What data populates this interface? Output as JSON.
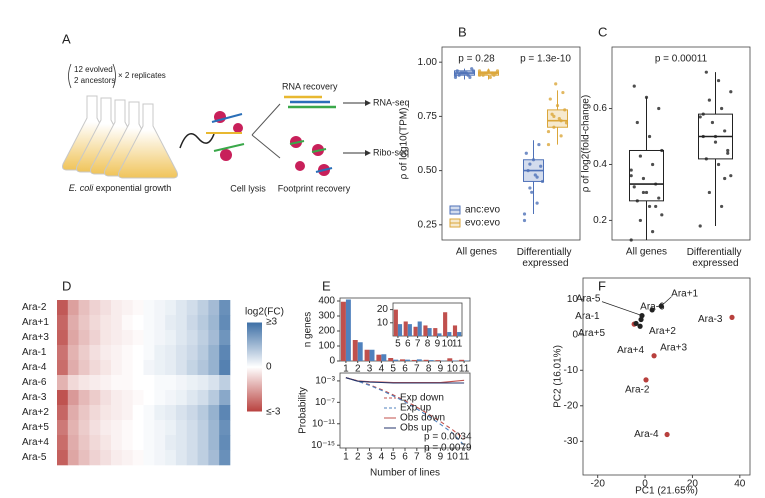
{
  "diagram": {
    "panel_labels": [
      "A",
      "B",
      "C",
      "D",
      "E",
      "F"
    ],
    "evolved": "12 evolved",
    "ancestors": "2 ancestors",
    "replicates": "× 2 replicates",
    "growth_species": "E. coli",
    "growth": " exponential growth",
    "lysis": "Cell lysis",
    "rna_recovery": "RNA recovery",
    "footprint": "Footprint recovery",
    "rna_seq": "RNA-seq",
    "ribo_seq": "Ribo-seq"
  },
  "chart_data": [
    {
      "type": "boxplot",
      "ylabel": "ρ of log10(TPM)",
      "categories": [
        "All genes",
        "Differentially expressed"
      ],
      "ylim": [
        0.18,
        1.07
      ],
      "yticks": [
        0.25,
        {
          "value": 0.5,
          "label": "0.50"
        },
        0.75,
        {
          "value": 1,
          "label": "1.00"
        }
      ],
      "annotations": [
        "p = 0.28",
        "p = 1.3e-10"
      ],
      "legend": "bottom-left",
      "series": [
        {
          "name": "anc:evo",
          "color": "#4f72b8",
          "box": [
            [
              0.92,
              0.94,
              0.95,
              0.96,
              0.97
            ],
            [
              0.3,
              0.45,
              0.5,
              0.55,
              0.64
            ]
          ],
          "points": [
            [
              0.93,
              0.94,
              0.95,
              0.96,
              0.95,
              0.94,
              0.97,
              0.95,
              0.96,
              0.93,
              0.95,
              0.94
            ],
            [
              0.3,
              0.35,
              0.42,
              0.45,
              0.48,
              0.5,
              0.52,
              0.55,
              0.58,
              0.62,
              0.4,
              0.27,
              0.47,
              0.53
            ]
          ]
        },
        {
          "name": "evo:evo",
          "color": "#dba63a",
          "box": [
            [
              0.92,
              0.94,
              0.95,
              0.955,
              0.97
            ],
            [
              0.62,
              0.7,
              0.73,
              0.78,
              0.87
            ]
          ],
          "points": [
            [
              0.94,
              0.95,
              0.95,
              0.96,
              0.93,
              0.94,
              0.95,
              0.96,
              0.95,
              0.94,
              0.95,
              0.96
            ],
            [
              0.62,
              0.66,
              0.7,
              0.72,
              0.74,
              0.76,
              0.78,
              0.8,
              0.83,
              0.86,
              0.9,
              0.68,
              0.73,
              0.75
            ]
          ]
        }
      ]
    },
    {
      "type": "boxplot",
      "ylabel": "ρ of log2(fold-change)",
      "categories": [
        "All genes",
        "Differentially expressed"
      ],
      "ylim": [
        0.13,
        0.82
      ],
      "yticks": [
        0.2,
        0.4,
        0.6
      ],
      "annotations": [
        "p = 0.00011"
      ],
      "series": [
        {
          "color": "#222222",
          "box": [
            [
              0.13,
              0.27,
              0.33,
              0.45,
              0.64
            ],
            [
              0.18,
              0.42,
              0.5,
              0.58,
              0.73
            ]
          ],
          "points": [
            [
              0.13,
              0.16,
              0.2,
              0.22,
              0.25,
              0.27,
              0.28,
              0.3,
              0.32,
              0.33,
              0.35,
              0.38,
              0.4,
              0.43,
              0.45,
              0.5,
              0.55,
              0.6,
              0.64,
              0.68,
              0.25,
              0.3,
              0.36
            ],
            [
              0.18,
              0.25,
              0.3,
              0.36,
              0.4,
              0.42,
              0.45,
              0.48,
              0.5,
              0.52,
              0.55,
              0.57,
              0.6,
              0.63,
              0.66,
              0.7,
              0.73,
              0.44,
              0.5,
              0.58,
              0.35
            ]
          ]
        }
      ]
    },
    {
      "type": "heatmap",
      "rows": [
        "Ara-2",
        "Ara+1",
        "Ara+3",
        "Ara-1",
        "Ara-4",
        "Ara-6",
        "Ara-3",
        "Ara+2",
        "Ara+5",
        "Ara+4",
        "Ara-5"
      ],
      "label_colors": [
        "#b8403d",
        "#222222",
        "#b8403d",
        "#b8403d",
        "#b8403d",
        "#222222",
        "#b8403d",
        "#222222",
        "#222222",
        "#222222",
        "#222222"
      ],
      "colors": [
        "#b8403d",
        "#ffffff",
        "#3b6ea5"
      ],
      "values": [
        [
          -2.6,
          -1.5,
          -1.0,
          -0.7,
          -0.5,
          -0.3,
          -0.2,
          -0.1,
          0.1,
          0.2,
          0.3,
          0.5,
          0.7,
          1.0,
          1.4,
          2.3
        ],
        [
          -2.4,
          -1.3,
          -0.9,
          -0.6,
          -0.4,
          -0.3,
          -0.1,
          0,
          0.1,
          0.2,
          0.4,
          0.5,
          0.8,
          1.1,
          1.5,
          2.4
        ],
        [
          -2.5,
          -1.4,
          -1.0,
          -0.7,
          -0.4,
          -0.3,
          -0.2,
          -0.1,
          0.1,
          0.2,
          0.3,
          0.5,
          0.7,
          1.0,
          1.4,
          2.2
        ],
        [
          -2.2,
          -1.2,
          -0.8,
          -0.5,
          -0.3,
          -0.2,
          -0.1,
          0,
          0.1,
          0.3,
          0.4,
          0.6,
          0.8,
          1.1,
          1.6,
          2.5
        ],
        [
          -2.3,
          -1.3,
          -0.9,
          -0.6,
          -0.4,
          -0.2,
          -0.1,
          0,
          0.2,
          0.3,
          0.4,
          0.6,
          0.9,
          1.2,
          1.6,
          2.6
        ],
        [
          -1.2,
          -0.6,
          -0.4,
          -0.3,
          -0.2,
          -0.1,
          -0.1,
          0,
          0,
          0.1,
          0.1,
          0.2,
          0.3,
          0.4,
          0.6,
          1.0
        ],
        [
          -2.7,
          -1.6,
          -1.1,
          -0.8,
          -0.5,
          -0.3,
          -0.2,
          -0.1,
          0,
          0.1,
          0.2,
          0.3,
          0.5,
          0.7,
          1.1,
          1.8
        ],
        [
          -2.4,
          -1.3,
          -0.9,
          -0.6,
          -0.4,
          -0.3,
          -0.2,
          0,
          0.1,
          0.3,
          0.4,
          0.6,
          0.8,
          1.1,
          1.6,
          2.5
        ],
        [
          -2.1,
          -1.2,
          -0.8,
          -0.5,
          -0.3,
          -0.2,
          -0.1,
          0,
          0.1,
          0.2,
          0.3,
          0.5,
          0.7,
          1.0,
          1.5,
          2.3
        ],
        [
          -2.3,
          -1.3,
          -0.9,
          -0.6,
          -0.4,
          -0.2,
          -0.1,
          0,
          0.1,
          0.2,
          0.4,
          0.5,
          0.7,
          1.0,
          1.5,
          2.4
        ],
        [
          -2.5,
          -1.4,
          -1.0,
          -0.7,
          -0.5,
          -0.3,
          -0.2,
          -0.1,
          0.1,
          0.2,
          0.3,
          0.5,
          0.7,
          1.0,
          1.4,
          2.3
        ]
      ],
      "colorbar": {
        "label": "log2(FC)",
        "range": [
          -3,
          3
        ],
        "ticks": [
          {
            "value": 3,
            "label": "≥3"
          },
          0,
          {
            "value": -3,
            "label": "≤-3"
          }
        ]
      }
    },
    {
      "type": "bar",
      "ylabel": "n genes",
      "categories": [
        1,
        2,
        3,
        4,
        5,
        6,
        7,
        8,
        9,
        10,
        11
      ],
      "ylim": [
        0,
        420
      ],
      "yticks": [
        0,
        100,
        200,
        300,
        400
      ],
      "series": [
        {
          "color": "#c0504d",
          "values": [
            395,
            140,
            75,
            42,
            20,
            11,
            7,
            8,
            6,
            18,
            8
          ]
        },
        {
          "color": "#4f81bd",
          "values": [
            410,
            125,
            75,
            45,
            9,
            9,
            11,
            6,
            2,
            3,
            3
          ]
        }
      ]
    },
    {
      "type": "bar",
      "categories": [
        5,
        6,
        7,
        8,
        9,
        10,
        11
      ],
      "ylim": [
        0,
        25
      ],
      "yticks": [
        10,
        20
      ],
      "series": [
        {
          "color": "#c0504d",
          "values": [
            20,
            11,
            7,
            8,
            6,
            18,
            8
          ]
        },
        {
          "color": "#4f81bd",
          "values": [
            9,
            9,
            11,
            6,
            2,
            3,
            3
          ]
        }
      ]
    },
    {
      "type": "line",
      "log_y": true,
      "xlabel": "Number of lines",
      "ylabel": "Probability",
      "x": [
        1,
        2,
        3,
        4,
        5,
        6,
        7,
        8,
        9,
        10,
        11
      ],
      "xlim": [
        0.5,
        11.5
      ],
      "xticks": [
        1,
        2,
        3,
        4,
        5,
        6,
        7,
        8,
        9,
        10,
        11
      ],
      "ylim": [
        3e-16,
        0.03
      ],
      "yticks": [
        {
          "value": 0.001,
          "label": "10⁻³"
        },
        {
          "value": 1e-07,
          "label": "10⁻⁷"
        },
        {
          "value": 1e-11,
          "label": "10⁻¹¹"
        },
        {
          "value": 1e-15,
          "label": "10⁻¹⁵"
        }
      ],
      "legend": "center",
      "series": [
        {
          "name": "Exp down",
          "color": "#c0504d",
          "dash": true,
          "values": [
            0.004,
            0.001,
            0.0002,
            2.5e-05,
            2.5e-06,
            2e-07,
            1.3e-08,
            6e-10,
            2.5e-11,
            8e-13,
            1.6e-14
          ]
        },
        {
          "name": "Exp up",
          "color": "#4f81bd",
          "dash": true,
          "values": [
            0.004,
            0.0009,
            0.00015,
            1.8e-05,
            1.6e-06,
            1.2e-07,
            6e-09,
            2.5e-10,
            8e-12,
            2e-13,
            1e-15
          ]
        },
        {
          "name": "Obs down",
          "color": "#c0504d",
          "dash": false,
          "values": [
            0.004,
            0.001,
            0.0007,
            0.0006,
            0.0005,
            0.0005,
            0.0005,
            0.0005,
            0.0005,
            0.0008,
            0.0013
          ]
        },
        {
          "name": "Obs up",
          "color": "#24366b",
          "dash": false,
          "values": [
            0.004,
            0.0009,
            0.0006,
            0.0005,
            0.0004,
            0.0004,
            0.0004,
            0.0004,
            0.0004,
            0.0004,
            0.0004
          ]
        }
      ],
      "annotations": [
        {
          "text": "p = 0.0034",
          "color": "#3a6fb0"
        },
        {
          "text": "p = 0.0079",
          "color": "#c0392b"
        }
      ]
    },
    {
      "type": "scatter",
      "xlabel": "PC1 (21.65%)",
      "ylabel": "PC2 (16.01%)",
      "xlim": [
        -26.2,
        44.3
      ],
      "xticks": [
        -20,
        0,
        20,
        40
      ],
      "ylim": [
        -39.5,
        16
      ],
      "yticks": [
        10,
        0,
        -10,
        -20,
        -30
      ],
      "labels": [
        "Ara+1",
        "Ara-6",
        "Ara-5",
        "Ara-1",
        "Ara+5",
        "Ara+2",
        "Ara+4",
        "Ara+3",
        "Ara-2",
        "Ara-3",
        "Ara-4"
      ],
      "x": [
        6.8,
        3.0,
        -1.3,
        -4.6,
        -3.8,
        -1.7,
        -2.1,
        3.8,
        0.4,
        36.7,
        9.3
      ],
      "y": [
        8.1,
        7.0,
        5.4,
        3.0,
        3.2,
        4.3,
        2.4,
        -5.9,
        -12.7,
        4.9,
        -28.1
      ],
      "colors": [
        "#222222",
        "#222222",
        "#222222",
        "#b8403d",
        "#222222",
        "#222222",
        "#222222",
        "#b8403d",
        "#b8403d",
        "#b8403d",
        "#b8403d"
      ]
    }
  ]
}
